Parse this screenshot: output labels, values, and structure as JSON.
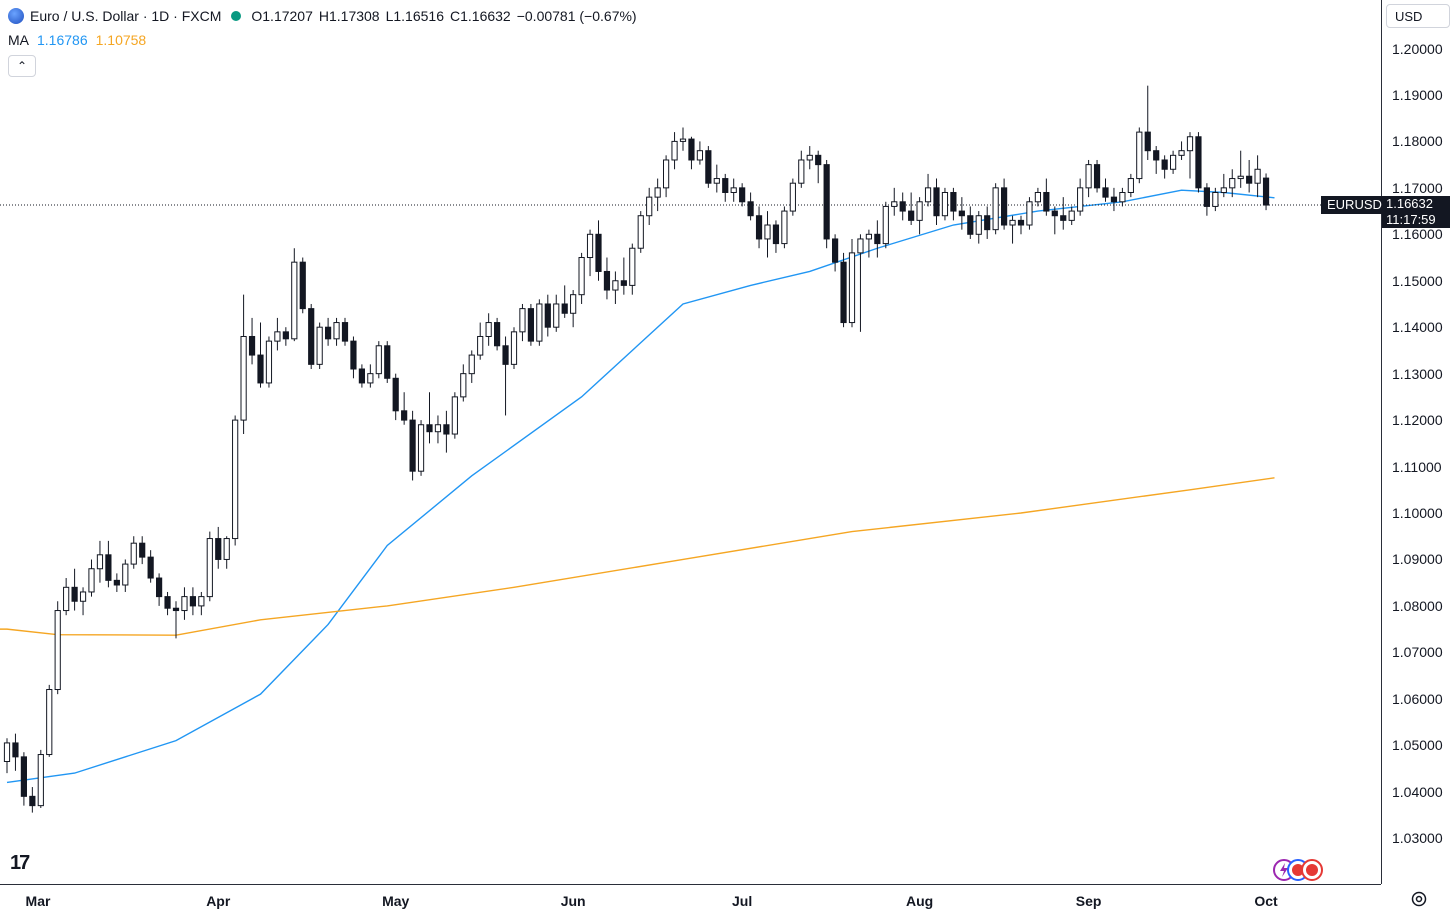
{
  "header": {
    "symbol_title": "Euro / U.S. Dollar · 1D · FXCM",
    "open": "O1.17207",
    "high": "H1.17308",
    "low": "L1.16516",
    "close": "C1.16632",
    "change": "−0.00781 (−0.67%)",
    "change_color": "#131722",
    "ma_label": "MA",
    "ma_fast_value": "1.16786",
    "ma_slow_value": "1.10758",
    "ma_fast_color": "#2196f3",
    "ma_slow_color": "#f5a623"
  },
  "controls": {
    "collapse_icon": "chevron-up-icon",
    "collapse_glyph": "⌃",
    "currency": "USD",
    "logo_text": "17"
  },
  "price_marker": {
    "symbol": "EURUSD",
    "price": "1.16632",
    "countdown": "11:17:59"
  },
  "chart_data": {
    "type": "candlestick",
    "title": "Euro / U.S. Dollar · 1D · FXCM",
    "ylim": [
      1.02,
      1.21
    ],
    "y_ticks": [
      "1.20000",
      "1.19000",
      "1.18000",
      "1.17000",
      "1.16000",
      "1.15000",
      "1.14000",
      "1.13000",
      "1.12000",
      "1.11000",
      "1.10000",
      "1.09000",
      "1.08000",
      "1.07000",
      "1.06000",
      "1.05000",
      "1.04000",
      "1.03000"
    ],
    "x_ticks": [
      "Mar",
      "Apr",
      "May",
      "Jun",
      "Jul",
      "Aug",
      "Sep",
      "Oct"
    ],
    "grid": false,
    "last_price": 1.16632,
    "candles": [
      [
        1.0465,
        1.0515,
        1.044,
        1.0505
      ],
      [
        1.0505,
        1.0525,
        1.0445,
        1.0475
      ],
      [
        1.0475,
        1.0485,
        1.037,
        1.039
      ],
      [
        1.039,
        1.041,
        1.0355,
        1.037
      ],
      [
        1.037,
        1.049,
        1.0365,
        1.048
      ],
      [
        1.048,
        1.063,
        1.0475,
        1.062
      ],
      [
        1.062,
        1.081,
        1.061,
        1.079
      ],
      [
        1.079,
        1.086,
        1.078,
        1.084
      ],
      [
        1.084,
        1.088,
        1.079,
        1.081
      ],
      [
        1.081,
        1.084,
        1.078,
        1.083
      ],
      [
        1.083,
        1.09,
        1.082,
        1.088
      ],
      [
        1.088,
        1.094,
        1.085,
        1.091
      ],
      [
        1.091,
        1.094,
        1.084,
        1.0855
      ],
      [
        1.0855,
        1.087,
        1.083,
        1.0845
      ],
      [
        1.0845,
        1.09,
        1.083,
        1.089
      ],
      [
        1.089,
        1.095,
        1.088,
        1.0935
      ],
      [
        1.0935,
        1.095,
        1.089,
        1.0905
      ],
      [
        1.0905,
        1.092,
        1.085,
        1.086
      ],
      [
        1.086,
        1.087,
        1.08,
        1.082
      ],
      [
        1.082,
        1.083,
        1.078,
        1.0795
      ],
      [
        1.0795,
        1.081,
        1.073,
        1.079
      ],
      [
        1.079,
        1.084,
        1.077,
        1.082
      ],
      [
        1.082,
        1.084,
        1.078,
        1.08
      ],
      [
        1.08,
        1.083,
        1.078,
        1.082
      ],
      [
        1.082,
        1.096,
        1.081,
        1.0945
      ],
      [
        1.0945,
        1.097,
        1.088,
        1.09
      ],
      [
        1.09,
        1.095,
        1.088,
        1.0945
      ],
      [
        1.0945,
        1.121,
        1.093,
        1.12
      ],
      [
        1.12,
        1.147,
        1.117,
        1.138
      ],
      [
        1.138,
        1.142,
        1.132,
        1.134
      ],
      [
        1.134,
        1.141,
        1.127,
        1.128
      ],
      [
        1.128,
        1.138,
        1.127,
        1.137
      ],
      [
        1.137,
        1.142,
        1.135,
        1.139
      ],
      [
        1.139,
        1.14,
        1.136,
        1.1375
      ],
      [
        1.1375,
        1.157,
        1.137,
        1.154
      ],
      [
        1.154,
        1.155,
        1.143,
        1.144
      ],
      [
        1.144,
        1.145,
        1.131,
        1.132
      ],
      [
        1.132,
        1.141,
        1.131,
        1.14
      ],
      [
        1.14,
        1.142,
        1.136,
        1.1375
      ],
      [
        1.1375,
        1.142,
        1.136,
        1.141
      ],
      [
        1.141,
        1.142,
        1.136,
        1.137
      ],
      [
        1.137,
        1.138,
        1.129,
        1.131
      ],
      [
        1.131,
        1.132,
        1.127,
        1.128
      ],
      [
        1.128,
        1.132,
        1.127,
        1.13
      ],
      [
        1.13,
        1.137,
        1.129,
        1.136
      ],
      [
        1.136,
        1.137,
        1.128,
        1.129
      ],
      [
        1.129,
        1.13,
        1.12,
        1.122
      ],
      [
        1.122,
        1.126,
        1.119,
        1.12
      ],
      [
        1.12,
        1.122,
        1.107,
        1.109
      ],
      [
        1.109,
        1.12,
        1.108,
        1.119
      ],
      [
        1.119,
        1.126,
        1.115,
        1.1175
      ],
      [
        1.1175,
        1.121,
        1.115,
        1.119
      ],
      [
        1.119,
        1.122,
        1.113,
        1.117
      ],
      [
        1.117,
        1.126,
        1.116,
        1.125
      ],
      [
        1.125,
        1.132,
        1.124,
        1.13
      ],
      [
        1.13,
        1.135,
        1.128,
        1.134
      ],
      [
        1.134,
        1.141,
        1.133,
        1.138
      ],
      [
        1.138,
        1.143,
        1.136,
        1.141
      ],
      [
        1.141,
        1.142,
        1.135,
        1.136
      ],
      [
        1.136,
        1.138,
        1.121,
        1.132
      ],
      [
        1.132,
        1.14,
        1.131,
        1.139
      ],
      [
        1.139,
        1.145,
        1.137,
        1.144
      ],
      [
        1.144,
        1.145,
        1.136,
        1.137
      ],
      [
        1.137,
        1.146,
        1.136,
        1.145
      ],
      [
        1.145,
        1.147,
        1.138,
        1.14
      ],
      [
        1.14,
        1.147,
        1.139,
        1.145
      ],
      [
        1.145,
        1.149,
        1.142,
        1.143
      ],
      [
        1.143,
        1.148,
        1.14,
        1.147
      ],
      [
        1.147,
        1.156,
        1.145,
        1.155
      ],
      [
        1.155,
        1.161,
        1.151,
        1.16
      ],
      [
        1.16,
        1.163,
        1.15,
        1.152
      ],
      [
        1.152,
        1.155,
        1.146,
        1.148
      ],
      [
        1.148,
        1.152,
        1.145,
        1.15
      ],
      [
        1.15,
        1.155,
        1.147,
        1.149
      ],
      [
        1.149,
        1.158,
        1.147,
        1.157
      ],
      [
        1.157,
        1.165,
        1.156,
        1.164
      ],
      [
        1.164,
        1.17,
        1.162,
        1.168
      ],
      [
        1.168,
        1.172,
        1.165,
        1.17
      ],
      [
        1.17,
        1.177,
        1.168,
        1.176
      ],
      [
        1.176,
        1.182,
        1.174,
        1.18
      ],
      [
        1.18,
        1.183,
        1.178,
        1.1805
      ],
      [
        1.1805,
        1.181,
        1.174,
        1.176
      ],
      [
        1.176,
        1.18,
        1.175,
        1.178
      ],
      [
        1.178,
        1.179,
        1.17,
        1.171
      ],
      [
        1.171,
        1.175,
        1.169,
        1.172
      ],
      [
        1.172,
        1.173,
        1.167,
        1.169
      ],
      [
        1.169,
        1.172,
        1.167,
        1.17
      ],
      [
        1.17,
        1.171,
        1.166,
        1.167
      ],
      [
        1.167,
        1.169,
        1.163,
        1.164
      ],
      [
        1.164,
        1.166,
        1.157,
        1.159
      ],
      [
        1.159,
        1.165,
        1.155,
        1.162
      ],
      [
        1.162,
        1.163,
        1.156,
        1.158
      ],
      [
        1.158,
        1.166,
        1.157,
        1.165
      ],
      [
        1.165,
        1.172,
        1.164,
        1.171
      ],
      [
        1.171,
        1.178,
        1.17,
        1.176
      ],
      [
        1.176,
        1.179,
        1.174,
        1.177
      ],
      [
        1.177,
        1.178,
        1.171,
        1.175
      ],
      [
        1.175,
        1.176,
        1.157,
        1.159
      ],
      [
        1.159,
        1.16,
        1.152,
        1.154
      ],
      [
        1.154,
        1.156,
        1.14,
        1.141
      ],
      [
        1.141,
        1.159,
        1.14,
        1.156
      ],
      [
        1.156,
        1.16,
        1.139,
        1.159
      ],
      [
        1.159,
        1.161,
        1.155,
        1.16
      ],
      [
        1.16,
        1.163,
        1.155,
        1.158
      ],
      [
        1.158,
        1.167,
        1.157,
        1.166
      ],
      [
        1.166,
        1.17,
        1.164,
        1.167
      ],
      [
        1.167,
        1.169,
        1.163,
        1.165
      ],
      [
        1.165,
        1.169,
        1.162,
        1.163
      ],
      [
        1.163,
        1.168,
        1.16,
        1.167
      ],
      [
        1.167,
        1.173,
        1.166,
        1.17
      ],
      [
        1.17,
        1.172,
        1.162,
        1.164
      ],
      [
        1.164,
        1.17,
        1.163,
        1.169
      ],
      [
        1.169,
        1.17,
        1.163,
        1.165
      ],
      [
        1.165,
        1.168,
        1.161,
        1.164
      ],
      [
        1.164,
        1.166,
        1.159,
        1.16
      ],
      [
        1.16,
        1.165,
        1.158,
        1.164
      ],
      [
        1.164,
        1.166,
        1.159,
        1.161
      ],
      [
        1.161,
        1.171,
        1.16,
        1.17
      ],
      [
        1.17,
        1.172,
        1.161,
        1.162
      ],
      [
        1.162,
        1.164,
        1.158,
        1.163
      ],
      [
        1.163,
        1.164,
        1.16,
        1.162
      ],
      [
        1.162,
        1.168,
        1.161,
        1.167
      ],
      [
        1.167,
        1.17,
        1.166,
        1.169
      ],
      [
        1.169,
        1.172,
        1.164,
        1.165
      ],
      [
        1.165,
        1.166,
        1.16,
        1.164
      ],
      [
        1.164,
        1.168,
        1.161,
        1.163
      ],
      [
        1.163,
        1.166,
        1.162,
        1.165
      ],
      [
        1.165,
        1.172,
        1.164,
        1.17
      ],
      [
        1.17,
        1.176,
        1.168,
        1.175
      ],
      [
        1.175,
        1.176,
        1.169,
        1.17
      ],
      [
        1.17,
        1.172,
        1.167,
        1.168
      ],
      [
        1.168,
        1.17,
        1.165,
        1.167
      ],
      [
        1.167,
        1.17,
        1.166,
        1.169
      ],
      [
        1.169,
        1.173,
        1.168,
        1.172
      ],
      [
        1.172,
        1.183,
        1.171,
        1.182
      ],
      [
        1.182,
        1.192,
        1.176,
        1.178
      ],
      [
        1.178,
        1.179,
        1.173,
        1.176
      ],
      [
        1.176,
        1.177,
        1.172,
        1.174
      ],
      [
        1.174,
        1.178,
        1.173,
        1.177
      ],
      [
        1.177,
        1.18,
        1.176,
        1.178
      ],
      [
        1.178,
        1.182,
        1.172,
        1.181
      ],
      [
        1.181,
        1.182,
        1.169,
        1.17
      ],
      [
        1.17,
        1.171,
        1.164,
        1.166
      ],
      [
        1.166,
        1.17,
        1.165,
        1.169
      ],
      [
        1.169,
        1.173,
        1.168,
        1.17
      ],
      [
        1.17,
        1.174,
        1.168,
        1.172
      ],
      [
        1.172,
        1.178,
        1.17,
        1.1725
      ],
      [
        1.1725,
        1.176,
        1.169,
        1.171
      ],
      [
        1.171,
        1.177,
        1.168,
        1.174
      ],
      [
        1.1721,
        1.1731,
        1.1652,
        1.1663
      ]
    ],
    "series": [
      {
        "name": "MA",
        "current": 1.16786,
        "color": "#2196f3",
        "points": [
          [
            0,
            1.042
          ],
          [
            8,
            1.044
          ],
          [
            20,
            1.051
          ],
          [
            30,
            1.061
          ],
          [
            38,
            1.076
          ],
          [
            45,
            1.093
          ],
          [
            55,
            1.108
          ],
          [
            68,
            1.125
          ],
          [
            80,
            1.145
          ],
          [
            88,
            1.149
          ],
          [
            95,
            1.152
          ],
          [
            103,
            1.157
          ],
          [
            112,
            1.162
          ],
          [
            122,
            1.165
          ],
          [
            132,
            1.167
          ],
          [
            139,
            1.1695
          ],
          [
            144,
            1.169
          ],
          [
            150,
            1.16786
          ]
        ]
      },
      {
        "name": "MA",
        "current": 1.10758,
        "color": "#f5a623",
        "points": [
          [
            0,
            1.075
          ],
          [
            6,
            1.0738
          ],
          [
            20,
            1.0737
          ],
          [
            30,
            1.077
          ],
          [
            45,
            1.08
          ],
          [
            60,
            1.084
          ],
          [
            80,
            1.09
          ],
          [
            100,
            1.096
          ],
          [
            120,
            1.1
          ],
          [
            140,
            1.105
          ],
          [
            150,
            1.10758
          ]
        ]
      }
    ]
  }
}
